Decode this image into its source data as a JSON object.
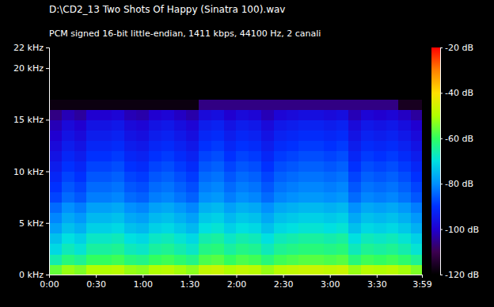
{
  "chart_data": {
    "type": "heatmap",
    "title": "D:\\CD2_13 Two Shots Of Happy (Sinatra 100).wav",
    "subtitle": "PCM signed 16-bit little-endian, 1411 kbps, 44100 Hz, 2 canali",
    "x": [
      0,
      8,
      16,
      24,
      32,
      40,
      48,
      56,
      64,
      72,
      80,
      88,
      96,
      104,
      112,
      120,
      128,
      136,
      144,
      152,
      160,
      168,
      176,
      184,
      192,
      200,
      208,
      216,
      224,
      232
    ],
    "y": [
      0,
      1,
      2,
      3,
      4,
      5,
      6,
      7,
      8,
      9,
      10,
      11,
      12,
      13,
      14,
      15,
      16,
      17
    ],
    "values": [
      [
        -56,
        -52,
        -54,
        -50,
        -50,
        -49,
        -52,
        -53,
        -50,
        -49,
        -51,
        -53,
        -48,
        -47,
        -50,
        -48,
        -49,
        -52,
        -49,
        -48,
        -47,
        -47,
        -48,
        -47,
        -52,
        -49,
        -50,
        -49,
        -51,
        -54
      ],
      [
        -66,
        -62,
        -64,
        -60,
        -60,
        -59,
        -62,
        -63,
        -60,
        -59,
        -61,
        -63,
        -58,
        -57,
        -60,
        -58,
        -59,
        -62,
        -59,
        -58,
        -57,
        -57,
        -58,
        -57,
        -62,
        -59,
        -60,
        -59,
        -61,
        -64
      ],
      [
        -71,
        -67,
        -69,
        -65,
        -65,
        -64,
        -67,
        -68,
        -65,
        -64,
        -66,
        -68,
        -63,
        -62,
        -65,
        -63,
        -64,
        -67,
        -64,
        -63,
        -62,
        -62,
        -63,
        -62,
        -67,
        -64,
        -65,
        -64,
        -66,
        -69
      ],
      [
        -74,
        -70,
        -72,
        -68,
        -68,
        -67,
        -70,
        -71,
        -68,
        -67,
        -69,
        -71,
        -66,
        -65,
        -68,
        -66,
        -67,
        -70,
        -67,
        -66,
        -65,
        -65,
        -66,
        -65,
        -70,
        -67,
        -68,
        -67,
        -69,
        -72
      ],
      [
        -78,
        -74,
        -76,
        -72,
        -72,
        -71,
        -74,
        -75,
        -72,
        -71,
        -73,
        -75,
        -70,
        -69,
        -72,
        -70,
        -71,
        -74,
        -71,
        -70,
        -69,
        -69,
        -70,
        -69,
        -74,
        -71,
        -72,
        -71,
        -73,
        -76
      ],
      [
        -81,
        -77,
        -79,
        -75,
        -75,
        -74,
        -77,
        -78,
        -75,
        -74,
        -76,
        -78,
        -73,
        -72,
        -75,
        -73,
        -74,
        -77,
        -74,
        -73,
        -72,
        -72,
        -73,
        -72,
        -77,
        -74,
        -75,
        -74,
        -76,
        -79
      ],
      [
        -84,
        -80,
        -82,
        -78,
        -78,
        -77,
        -80,
        -81,
        -78,
        -77,
        -79,
        -81,
        -76,
        -75,
        -78,
        -76,
        -77,
        -80,
        -77,
        -76,
        -75,
        -75,
        -76,
        -75,
        -80,
        -77,
        -78,
        -77,
        -79,
        -82
      ],
      [
        -88,
        -84,
        -86,
        -82,
        -82,
        -81,
        -84,
        -85,
        -82,
        -81,
        -83,
        -85,
        -80,
        -79,
        -82,
        -80,
        -81,
        -84,
        -81,
        -80,
        -79,
        -79,
        -80,
        -79,
        -84,
        -81,
        -82,
        -81,
        -83,
        -86
      ],
      [
        -90,
        -86,
        -88,
        -84,
        -84,
        -83,
        -86,
        -87,
        -84,
        -83,
        -85,
        -87,
        -82,
        -81,
        -84,
        -82,
        -83,
        -86,
        -83,
        -82,
        -81,
        -81,
        -82,
        -81,
        -86,
        -83,
        -84,
        -83,
        -85,
        -88
      ],
      [
        -92,
        -88,
        -90,
        -86,
        -86,
        -85,
        -88,
        -89,
        -86,
        -85,
        -87,
        -89,
        -84,
        -83,
        -86,
        -84,
        -85,
        -88,
        -85,
        -84,
        -83,
        -83,
        -84,
        -83,
        -88,
        -85,
        -86,
        -85,
        -87,
        -90
      ],
      [
        -94,
        -90,
        -92,
        -88,
        -88,
        -87,
        -90,
        -91,
        -88,
        -87,
        -89,
        -91,
        -86,
        -85,
        -88,
        -86,
        -87,
        -90,
        -87,
        -86,
        -85,
        -85,
        -86,
        -85,
        -90,
        -87,
        -88,
        -87,
        -89,
        -92
      ],
      [
        -96,
        -92,
        -94,
        -90,
        -90,
        -89,
        -92,
        -93,
        -90,
        -89,
        -91,
        -93,
        -88,
        -87,
        -90,
        -88,
        -89,
        -92,
        -89,
        -88,
        -87,
        -87,
        -88,
        -87,
        -92,
        -89,
        -90,
        -89,
        -91,
        -94
      ],
      [
        -98,
        -94,
        -96,
        -92,
        -92,
        -91,
        -94,
        -95,
        -92,
        -91,
        -93,
        -95,
        -90,
        -89,
        -92,
        -90,
        -91,
        -94,
        -91,
        -90,
        -89,
        -89,
        -90,
        -89,
        -94,
        -91,
        -92,
        -91,
        -93,
        -96
      ],
      [
        -100,
        -96,
        -98,
        -94,
        -94,
        -93,
        -96,
        -97,
        -94,
        -93,
        -95,
        -97,
        -92,
        -91,
        -94,
        -92,
        -93,
        -96,
        -93,
        -92,
        -91,
        -91,
        -92,
        -91,
        -96,
        -93,
        -94,
        -93,
        -95,
        -98
      ],
      [
        -102,
        -98,
        -100,
        -96,
        -96,
        -95,
        -98,
        -99,
        -96,
        -95,
        -97,
        -99,
        -94,
        -93,
        -96,
        -94,
        -95,
        -98,
        -95,
        -94,
        -93,
        -93,
        -94,
        -93,
        -98,
        -95,
        -96,
        -95,
        -97,
        -100
      ],
      [
        -106,
        -102,
        -104,
        -100,
        -100,
        -99,
        -102,
        -103,
        -100,
        -99,
        -101,
        -103,
        -98,
        -97,
        -100,
        -98,
        -99,
        -102,
        -99,
        -98,
        -97,
        -97,
        -98,
        -97,
        -102,
        -99,
        -100,
        -99,
        -101,
        -104
      ],
      [
        -118,
        -118,
        -118,
        -118,
        -118,
        -118,
        -118,
        -118,
        -118,
        -118,
        -118,
        -118,
        -106,
        -106,
        -106,
        -106,
        -106,
        -106,
        -106,
        -106,
        -106,
        -106,
        -106,
        -106,
        -106,
        -106,
        -106,
        -106,
        -116,
        -116
      ],
      [
        -120,
        -120,
        -120,
        -120,
        -120,
        -120,
        -120,
        -120,
        -120,
        -120,
        -120,
        -120,
        -120,
        -120,
        -120,
        -120,
        -120,
        -120,
        -120,
        -120,
        -120,
        -120,
        -120,
        -120,
        -120,
        -120,
        -120,
        -120,
        -120,
        -120
      ]
    ],
    "xlim": [
      0,
      239
    ],
    "xticks": [
      {
        "value": 0,
        "label": "0:00"
      },
      {
        "value": 30,
        "label": "0:30"
      },
      {
        "value": 60,
        "label": "1:00"
      },
      {
        "value": 90,
        "label": "1:30"
      },
      {
        "value": 120,
        "label": "2:00"
      },
      {
        "value": 150,
        "label": "2:30"
      },
      {
        "value": 180,
        "label": "3:00"
      },
      {
        "value": 210,
        "label": "3:30"
      },
      {
        "value": 239,
        "label": "3:59"
      }
    ],
    "ylim": [
      0,
      22
    ],
    "yticks": [
      {
        "value": 0,
        "label": "0 kHz"
      },
      {
        "value": 5,
        "label": "5 kHz"
      },
      {
        "value": 10,
        "label": "10 kHz"
      },
      {
        "value": 15,
        "label": "15 kHz"
      },
      {
        "value": 20,
        "label": "20 kHz"
      },
      {
        "value": 22,
        "label": "22 kHz"
      }
    ],
    "colorbar_range": [
      -120,
      -20
    ],
    "colorbar_ticks": [
      {
        "value": -20,
        "label": "-20 dB"
      },
      {
        "value": -40,
        "label": "-40 dB"
      },
      {
        "value": -60,
        "label": "-60 dB"
      },
      {
        "value": -80,
        "label": "-80 dB"
      },
      {
        "value": -100,
        "label": "-100 dB"
      },
      {
        "value": -120,
        "label": "-120 dB"
      }
    ]
  }
}
